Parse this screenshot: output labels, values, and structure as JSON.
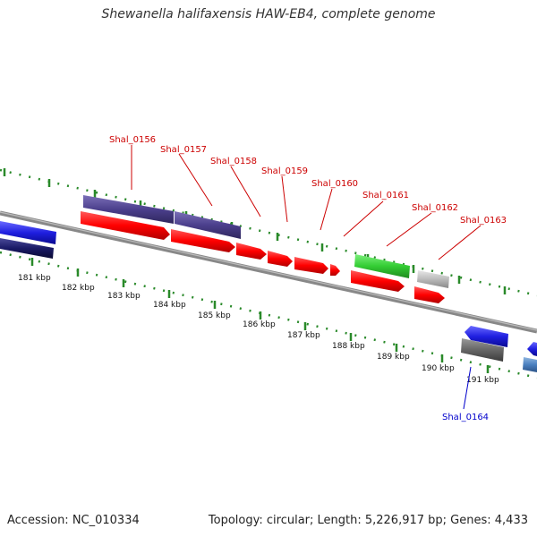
{
  "title": "Shewanella halifaxensis HAW-EB4, complete genome",
  "accession": "Accession: NC_010334",
  "topology": "Topology: circular; Length: 5,226,917 bp; Genes: 4,433",
  "kbp_labels": [
    "181 kbp",
    "182 kbp",
    "183 kbp",
    "184 kbp",
    "185 kbp",
    "186 kbp",
    "187 kbp",
    "188 kbp",
    "189 kbp",
    "190 kbp",
    "191 kbp"
  ],
  "gene_labels": [
    "Shal_0156",
    "Shal_0157",
    "Shal_0158",
    "Shal_0159",
    "Shal_0160",
    "Shal_0161",
    "Shal_0162",
    "Shal_0163",
    "Shal_0164"
  ],
  "colors": {
    "cds": "#ff0000",
    "gene": "#4b3f8c",
    "rna": "#33cc33",
    "misc": "#bbbbbb",
    "reverse": "#1f1fe0",
    "label_red": "#cc0000",
    "label_blue": "#0000cc",
    "tick": "#2a8a2a",
    "backbone": "#888888"
  }
}
